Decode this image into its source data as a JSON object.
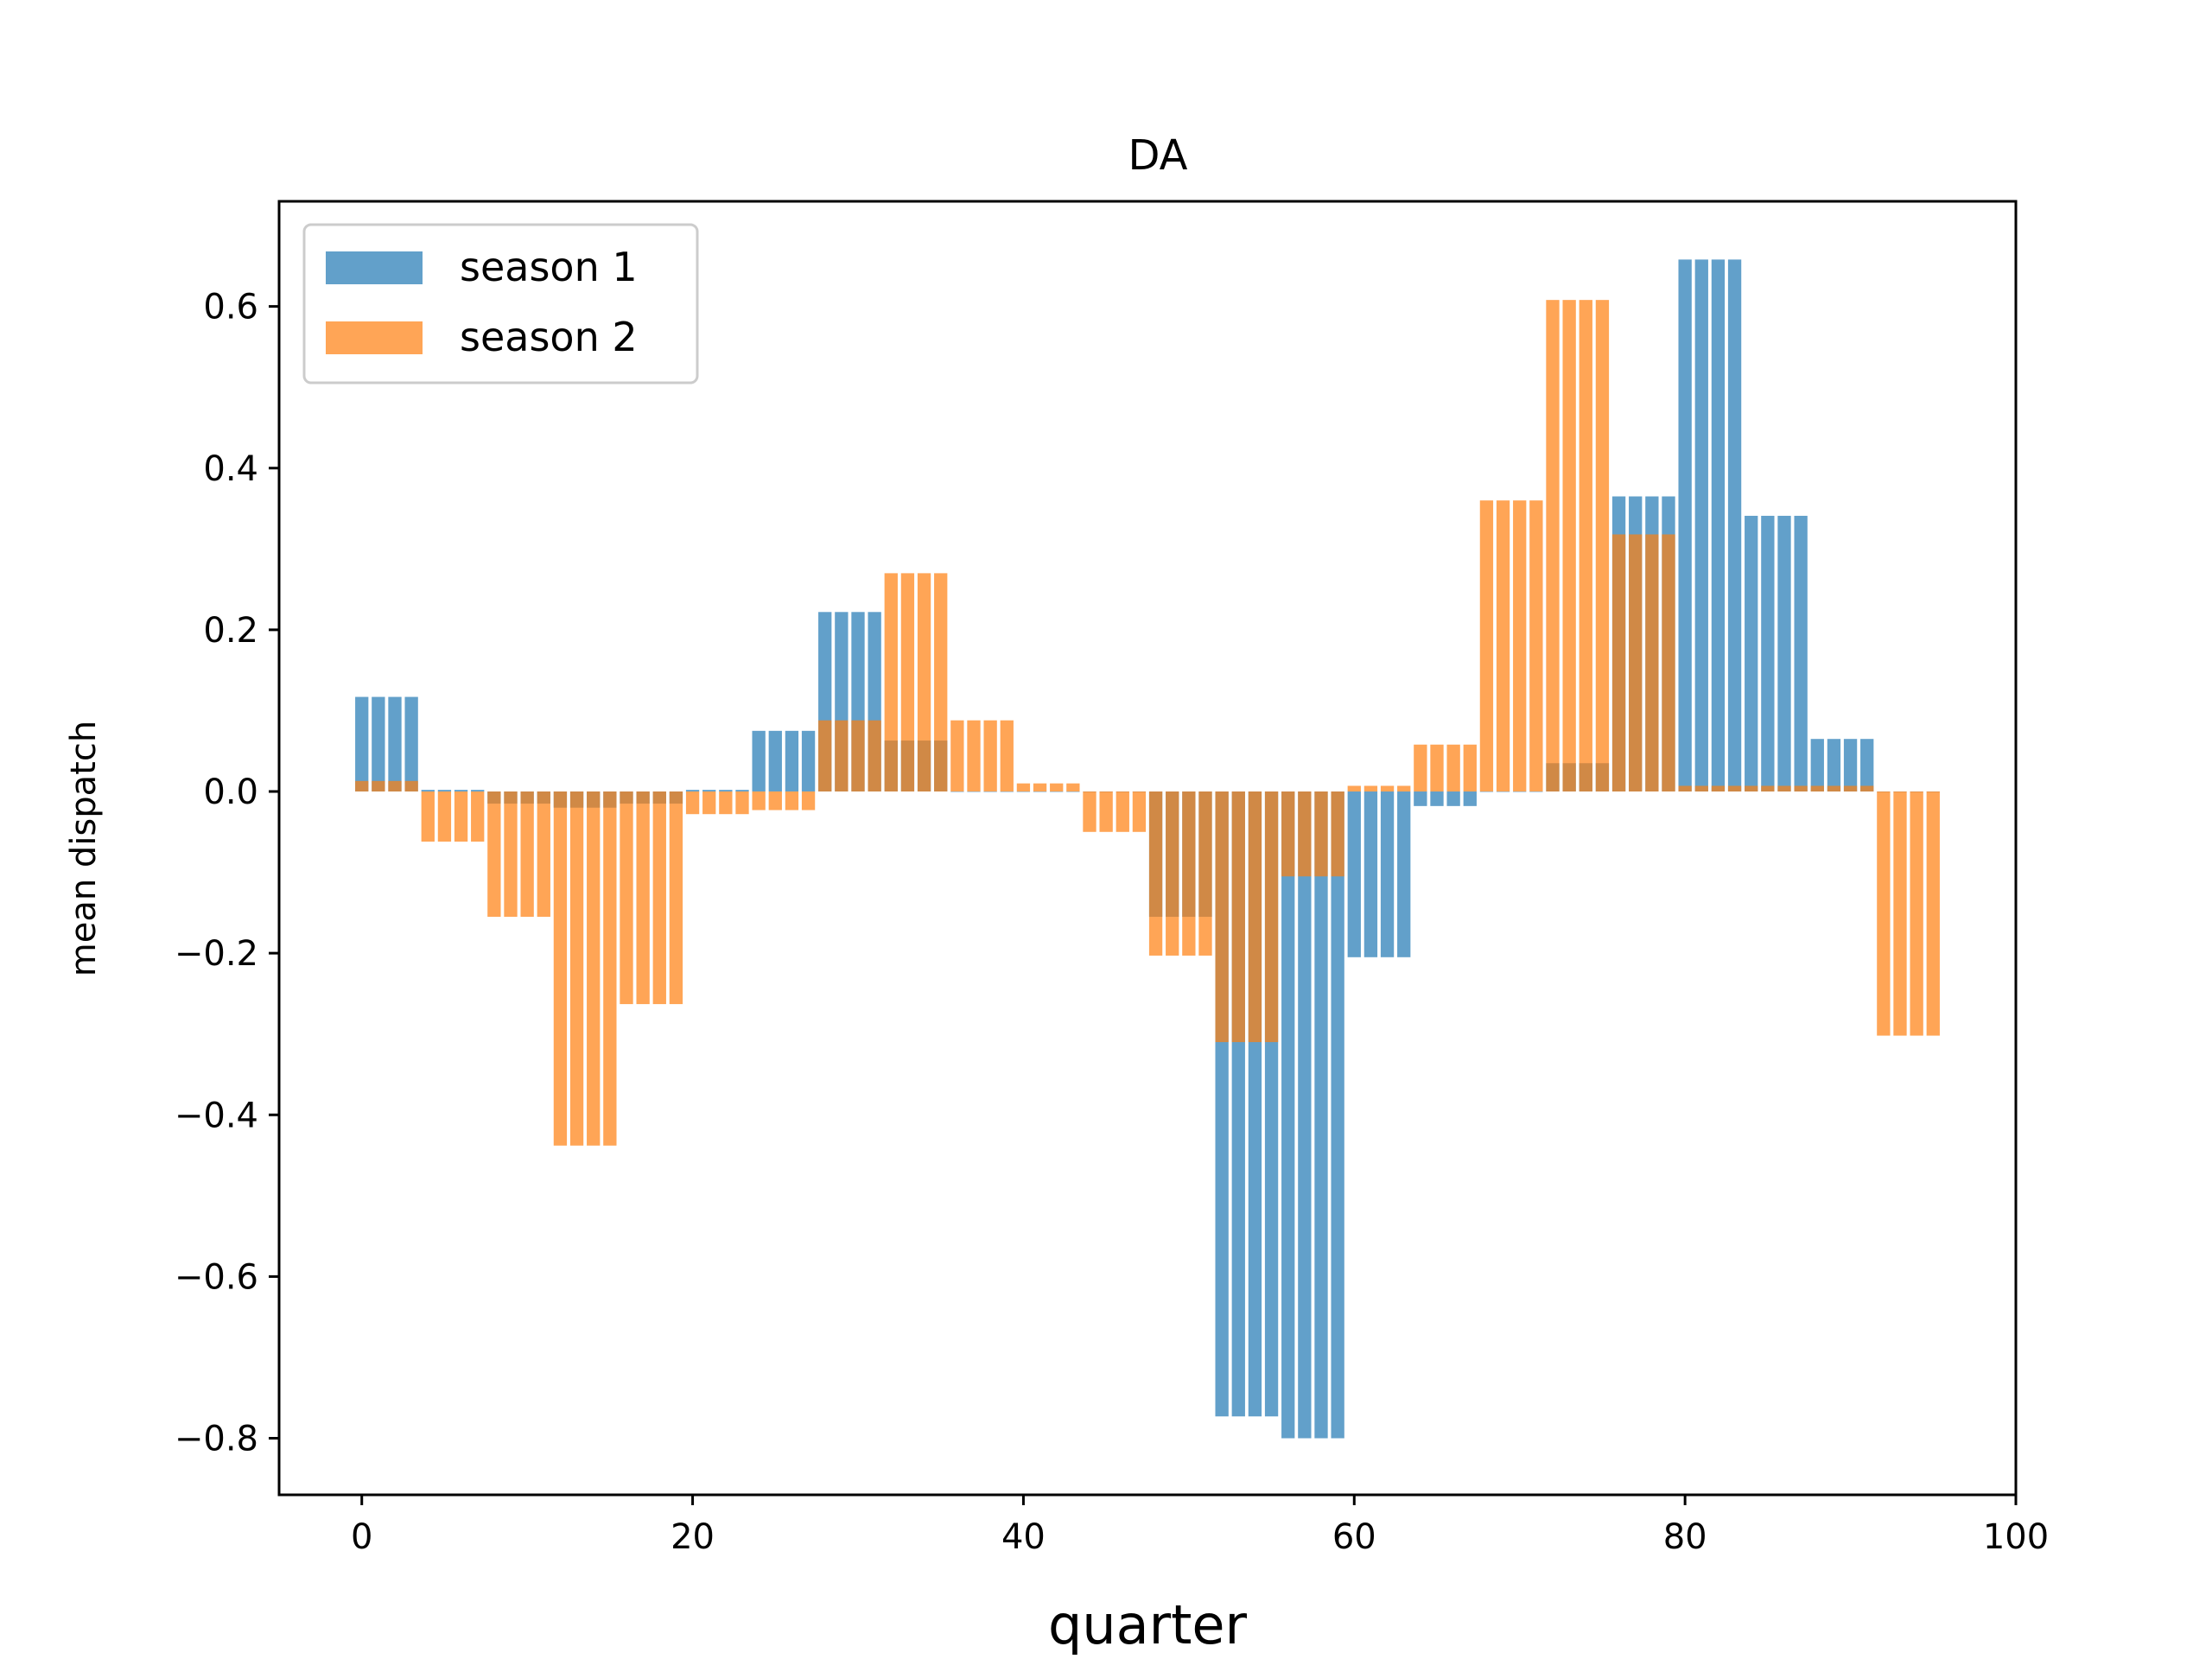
{
  "chart_data": {
    "type": "bar",
    "title": "DA",
    "xlabel": "quarter",
    "ylabel": "mean dispatch",
    "xlim": [
      -5,
      100
    ],
    "ylim": [
      -0.87,
      0.73
    ],
    "xticks": [
      0,
      20,
      40,
      60,
      80,
      100
    ],
    "xtick_labels": [
      "0",
      "20",
      "40",
      "60",
      "80",
      "100"
    ],
    "yticks": [
      -0.8,
      -0.6,
      -0.4,
      -0.2,
      0.0,
      0.2,
      0.4,
      0.6
    ],
    "ytick_labels": [
      "−0.8",
      "−0.6",
      "−0.4",
      "−0.2",
      "0.0",
      "0.2",
      "0.4",
      "0.6"
    ],
    "legend_position": "upper-left",
    "bar_width": 0.8,
    "group_size": 4,
    "series": [
      {
        "name": "season 1",
        "color": "#1f77b4",
        "opacity": 0.7,
        "group_values": [
          0.117,
          0.002,
          -0.015,
          -0.02,
          -0.015,
          0.002,
          0.075,
          0.222,
          0.063,
          0.0,
          0.0,
          0.0,
          -0.155,
          -0.773,
          -0.8,
          -0.205,
          -0.018,
          0.0,
          0.035,
          0.365,
          0.658,
          0.341,
          0.065,
          0.0
        ]
      },
      {
        "name": "season 2",
        "color": "#ff7f0e",
        "opacity": 0.7,
        "group_values": [
          0.013,
          -0.062,
          -0.155,
          -0.438,
          -0.263,
          -0.028,
          -0.023,
          0.088,
          0.27,
          0.088,
          0.01,
          -0.05,
          -0.203,
          -0.31,
          -0.105,
          0.007,
          0.058,
          0.36,
          0.608,
          0.318,
          0.007,
          0.007,
          0.007,
          -0.302
        ]
      }
    ]
  }
}
